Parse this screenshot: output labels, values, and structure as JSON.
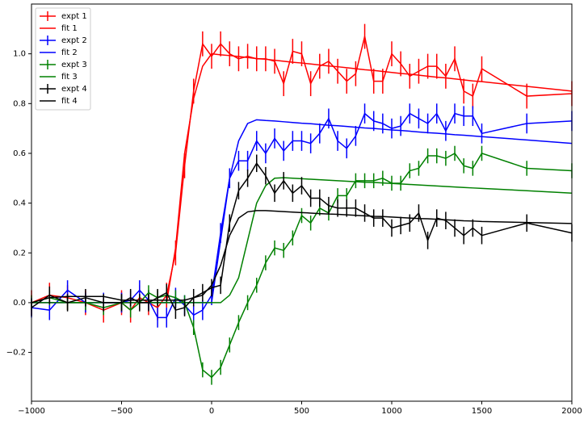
{
  "chart_data": {
    "type": "line",
    "x": [
      -1000,
      -900,
      -800,
      -700,
      -600,
      -500,
      -450,
      -400,
      -350,
      -300,
      -250,
      -200,
      -150,
      -100,
      -50,
      0,
      50,
      100,
      150,
      200,
      250,
      300,
      350,
      400,
      450,
      500,
      550,
      600,
      650,
      700,
      750,
      800,
      850,
      900,
      950,
      1000,
      1050,
      1100,
      1150,
      1200,
      1250,
      1300,
      1350,
      1400,
      1450,
      1500,
      1750,
      2000
    ],
    "series": [
      {
        "name": "expt 1",
        "color": "#ff0000",
        "error": 0.05,
        "values": [
          0.0,
          0.03,
          0.02,
          0.0,
          -0.03,
          0.0,
          -0.03,
          0.02,
          0.0,
          -0.02,
          0.03,
          0.2,
          0.55,
          0.85,
          1.04,
          0.99,
          1.04,
          1.0,
          0.98,
          0.99,
          0.98,
          0.98,
          0.97,
          0.88,
          1.01,
          1.0,
          0.88,
          0.95,
          0.97,
          0.93,
          0.89,
          0.92,
          1.07,
          0.89,
          0.89,
          1.0,
          0.96,
          0.91,
          0.93,
          0.95,
          0.95,
          0.91,
          0.98,
          0.85,
          0.83,
          0.94,
          0.83,
          0.84
        ]
      },
      {
        "name": "fit 1",
        "color": "#ff0000",
        "values": [
          0,
          0,
          0,
          0,
          0,
          0,
          0,
          0,
          0,
          0,
          0,
          0.22,
          0.6,
          0.82,
          0.95,
          1.0,
          0.996,
          0.993,
          0.989,
          0.985,
          0.981,
          0.978,
          0.974,
          0.97,
          0.966,
          0.963,
          0.959,
          0.955,
          0.951,
          0.948,
          0.944,
          0.94,
          0.936,
          0.933,
          0.929,
          0.925,
          0.921,
          0.918,
          0.914,
          0.91,
          0.906,
          0.903,
          0.899,
          0.895,
          0.891,
          0.888,
          0.869,
          0.85
        ]
      },
      {
        "name": "expt 2",
        "color": "#0000ff",
        "error": 0.04,
        "values": [
          -0.02,
          -0.03,
          0.05,
          0.0,
          0.0,
          0.0,
          0.01,
          0.05,
          0.01,
          -0.06,
          -0.06,
          0.02,
          -0.01,
          -0.05,
          -0.03,
          0.03,
          0.28,
          0.5,
          0.57,
          0.57,
          0.65,
          0.6,
          0.66,
          0.61,
          0.65,
          0.65,
          0.64,
          0.68,
          0.74,
          0.65,
          0.62,
          0.67,
          0.76,
          0.73,
          0.72,
          0.7,
          0.71,
          0.76,
          0.74,
          0.72,
          0.76,
          0.69,
          0.76,
          0.75,
          0.75,
          0.68,
          0.72,
          0.73
        ]
      },
      {
        "name": "fit 2",
        "color": "#0000ff",
        "values": [
          0,
          0,
          0,
          0,
          0,
          0,
          0,
          0,
          0,
          0,
          0,
          0,
          0,
          0,
          0,
          0,
          0.25,
          0.5,
          0.65,
          0.72,
          0.735,
          0.732,
          0.73,
          0.727,
          0.724,
          0.721,
          0.719,
          0.716,
          0.713,
          0.711,
          0.708,
          0.705,
          0.702,
          0.7,
          0.697,
          0.694,
          0.692,
          0.689,
          0.686,
          0.683,
          0.681,
          0.678,
          0.675,
          0.673,
          0.67,
          0.667,
          0.654,
          0.64
        ]
      },
      {
        "name": "expt 3",
        "color": "#008000",
        "error": 0.03,
        "values": [
          0.0,
          0.02,
          0.0,
          0.0,
          -0.02,
          0.0,
          -0.03,
          0.0,
          0.04,
          0.02,
          0.03,
          0.02,
          0.0,
          -0.1,
          -0.27,
          -0.3,
          -0.26,
          -0.17,
          -0.08,
          0.0,
          0.07,
          0.16,
          0.22,
          0.21,
          0.26,
          0.35,
          0.32,
          0.38,
          0.36,
          0.43,
          0.43,
          0.49,
          0.49,
          0.49,
          0.5,
          0.48,
          0.48,
          0.53,
          0.54,
          0.59,
          0.59,
          0.58,
          0.6,
          0.55,
          0.54,
          0.6,
          0.54,
          0.53
        ]
      },
      {
        "name": "fit 3",
        "color": "#008000",
        "values": [
          0,
          0,
          0,
          0,
          0,
          0,
          0,
          0,
          0,
          0,
          0,
          0,
          0,
          0,
          0,
          0,
          0,
          0.03,
          0.1,
          0.25,
          0.4,
          0.47,
          0.5,
          0.502,
          0.5,
          0.498,
          0.496,
          0.494,
          0.492,
          0.49,
          0.488,
          0.486,
          0.484,
          0.483,
          0.481,
          0.479,
          0.477,
          0.475,
          0.473,
          0.471,
          0.469,
          0.467,
          0.465,
          0.463,
          0.461,
          0.459,
          0.45,
          0.44
        ]
      },
      {
        "name": "expt 4",
        "color": "#000000",
        "error": 0.035,
        "values": [
          -0.02,
          0.03,
          0.0,
          0.02,
          0.0,
          0.0,
          0.02,
          0.0,
          0.0,
          0.02,
          0.04,
          -0.03,
          -0.02,
          0.02,
          0.04,
          0.06,
          0.07,
          0.32,
          0.45,
          0.5,
          0.56,
          0.51,
          0.44,
          0.49,
          0.44,
          0.47,
          0.42,
          0.42,
          0.39,
          0.38,
          0.38,
          0.38,
          0.36,
          0.34,
          0.34,
          0.3,
          0.31,
          0.32,
          0.36,
          0.25,
          0.34,
          0.33,
          0.3,
          0.27,
          0.3,
          0.27,
          0.32,
          0.28
        ]
      },
      {
        "name": "fit 4",
        "color": "#000000",
        "values": [
          0.0,
          0.02,
          0.025,
          0.025,
          0.025,
          0.01,
          0.01,
          0.01,
          0.01,
          0.01,
          0.01,
          0.01,
          0.01,
          0.02,
          0.03,
          0.07,
          0.15,
          0.27,
          0.34,
          0.365,
          0.37,
          0.37,
          0.368,
          0.366,
          0.364,
          0.362,
          0.36,
          0.358,
          0.356,
          0.355,
          0.353,
          0.351,
          0.349,
          0.347,
          0.346,
          0.344,
          0.342,
          0.34,
          0.338,
          0.337,
          0.335,
          0.333,
          0.331,
          0.329,
          0.328,
          0.326,
          0.322,
          0.318
        ]
      }
    ],
    "xlim": [
      -1000,
      2000
    ],
    "xticks": [
      {
        "value": -1000,
        "label": "−1000"
      },
      {
        "value": -500,
        "label": "−500"
      },
      0,
      500,
      1000,
      1500,
      2000
    ],
    "ylim": [
      -0.396,
      1.2
    ],
    "yticks": [
      {
        "value": -0.2,
        "label": "−0.2"
      },
      {
        "value": 0,
        "label": "0.0"
      },
      0.2,
      0.4,
      0.6,
      0.8,
      {
        "value": 1.0,
        "label": "1.0"
      }
    ],
    "legend": "upper left"
  }
}
